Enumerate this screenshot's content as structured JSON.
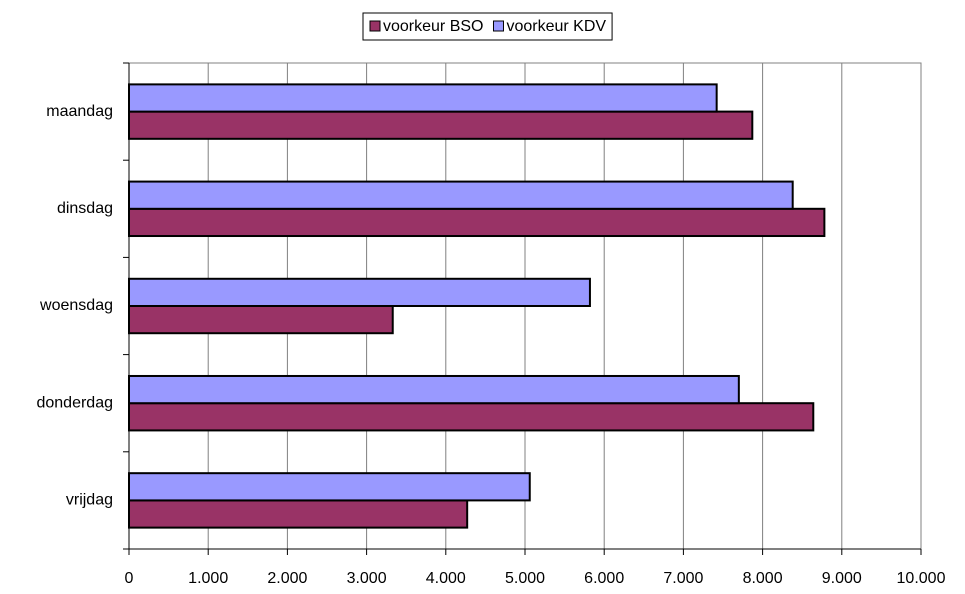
{
  "chart_data": {
    "type": "bar",
    "orientation": "horizontal",
    "categories": [
      "maandag",
      "dinsdag",
      "woensdag",
      "donderdag",
      "vrijdag"
    ],
    "series": [
      {
        "name": "voorkeur BSO",
        "color": "#993366",
        "values": [
          7870,
          8780,
          3330,
          8640,
          4270
        ]
      },
      {
        "name": "voorkeur KDV",
        "color": "#9999ff",
        "values": [
          7420,
          8380,
          5820,
          7700,
          5060
        ]
      }
    ],
    "xlim": [
      0,
      10000
    ],
    "xticks": [
      0,
      {
        "value": 1000,
        "label": "1.000"
      },
      {
        "value": 2000,
        "label": "2.000"
      },
      {
        "value": 3000,
        "label": "3.000"
      },
      {
        "value": 4000,
        "label": "4.000"
      },
      {
        "value": 5000,
        "label": "5.000"
      },
      {
        "value": 6000,
        "label": "6.000"
      },
      {
        "value": 7000,
        "label": "7.000"
      },
      {
        "value": 8000,
        "label": "8.000"
      },
      {
        "value": 9000,
        "label": "9.000"
      },
      {
        "value": 10000,
        "label": "10.000"
      }
    ],
    "grid": true,
    "legend": "top"
  }
}
